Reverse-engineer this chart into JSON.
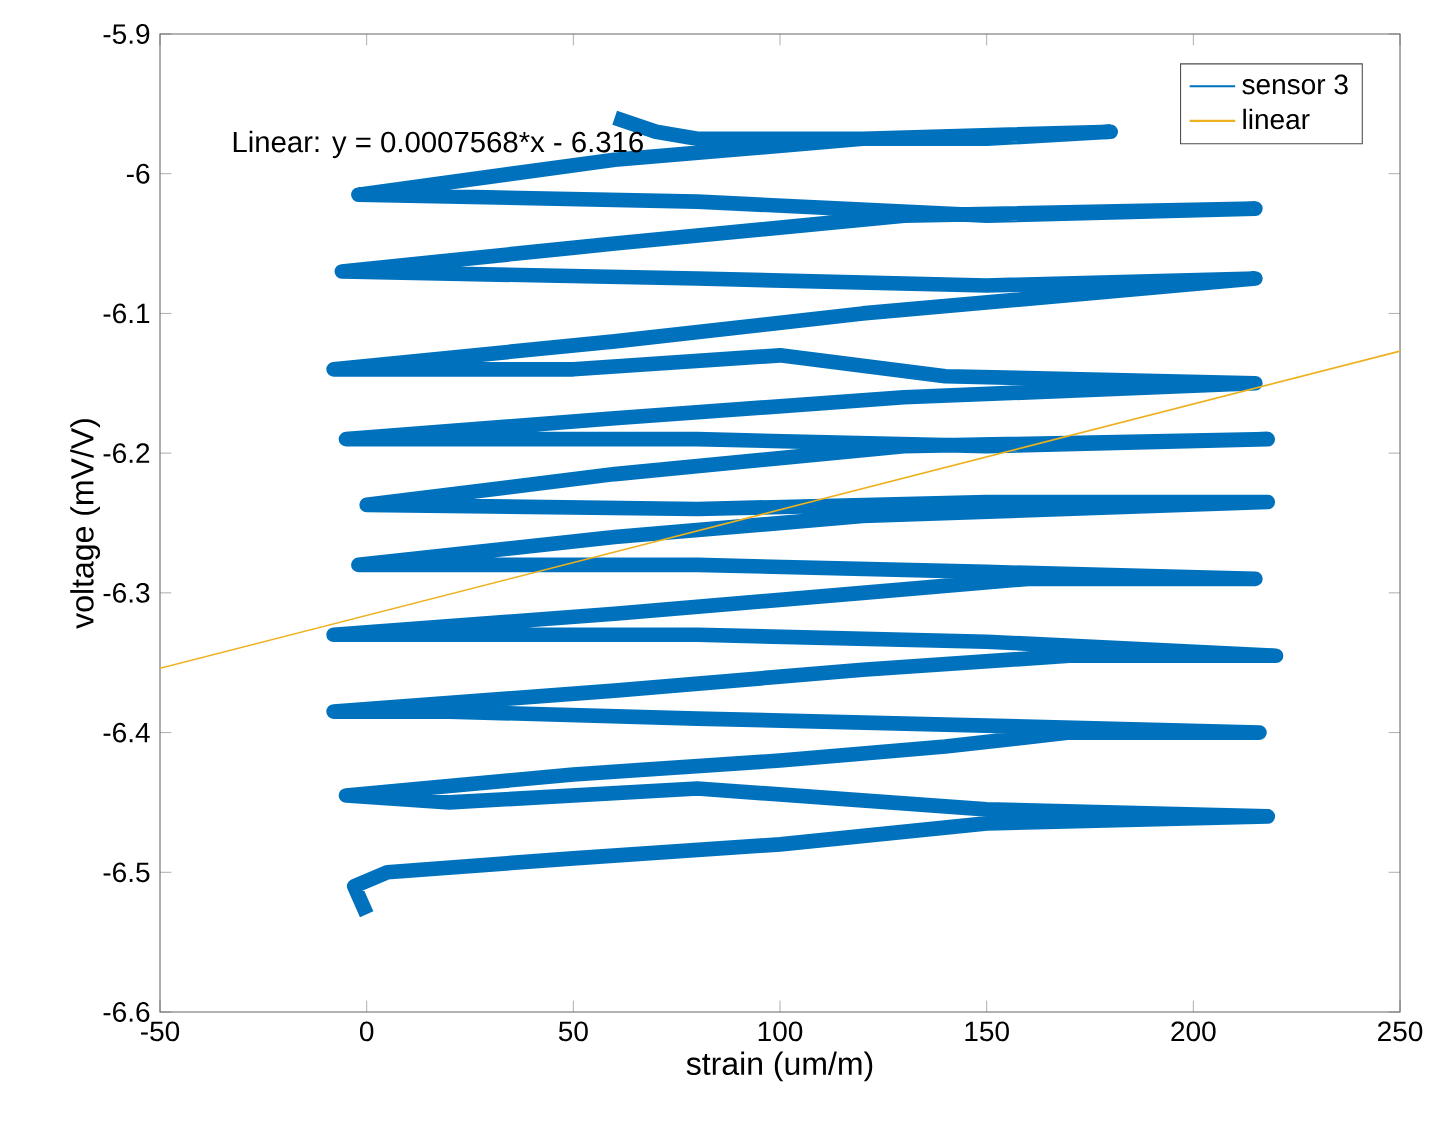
{
  "chart_data": {
    "type": "line",
    "xlabel": "strain (um/m)",
    "ylabel": "voltage (mV/V)",
    "xlim": [
      -50,
      250
    ],
    "ylim": [
      -6.6,
      -5.9
    ],
    "xticks": [
      -50,
      0,
      50,
      100,
      150,
      200,
      250
    ],
    "yticks": [
      -6.6,
      -6.5,
      -6.4,
      -6.3,
      -6.2,
      -6.1,
      -6,
      -5.9
    ],
    "grid": false,
    "legend": "top right",
    "annotations": [
      "Linear:  y = 0.0007568*x - 6.316"
    ],
    "series": [
      {
        "name": "sensor 3",
        "color": "#0072bd",
        "x": [
          0,
          -3,
          5,
          50,
          100,
          150,
          218,
          150,
          80,
          20,
          -5,
          50,
          100,
          140,
          170,
          216,
          150,
          80,
          20,
          -8,
          60,
          120,
          170,
          220,
          150,
          80,
          -8,
          60,
          120,
          160,
          215,
          150,
          80,
          -2,
          60,
          120,
          218,
          150,
          80,
          0,
          60,
          130,
          218,
          150,
          80,
          -5,
          60,
          130,
          215,
          140,
          100,
          50,
          -8,
          60,
          120,
          215,
          150,
          80,
          -6,
          60,
          130,
          215,
          150,
          80,
          -2,
          60,
          120,
          180,
          150,
          80,
          70,
          60
        ],
        "values": [
          -6.53,
          -6.51,
          -6.5,
          -6.49,
          -6.48,
          -6.465,
          -6.46,
          -6.455,
          -6.44,
          -6.45,
          -6.445,
          -6.43,
          -6.42,
          -6.41,
          -6.4,
          -6.4,
          -6.395,
          -6.39,
          -6.385,
          -6.385,
          -6.37,
          -6.355,
          -6.345,
          -6.345,
          -6.335,
          -6.33,
          -6.33,
          -6.315,
          -6.3,
          -6.29,
          -6.29,
          -6.285,
          -6.28,
          -6.28,
          -6.26,
          -6.245,
          -6.235,
          -6.235,
          -6.24,
          -6.237,
          -6.215,
          -6.195,
          -6.19,
          -6.195,
          -6.19,
          -6.19,
          -6.175,
          -6.16,
          -6.15,
          -6.145,
          -6.13,
          -6.14,
          -6.14,
          -6.12,
          -6.1,
          -6.075,
          -6.08,
          -6.075,
          -6.07,
          -6.05,
          -6.03,
          -6.025,
          -6.03,
          -6.02,
          -6.015,
          -5.99,
          -5.975,
          -5.97,
          -5.975,
          -5.975,
          -5.97,
          -5.96
        ]
      },
      {
        "name": "linear",
        "color": "#edb120",
        "x": [
          -50,
          250
        ],
        "values": [
          -6.354,
          -6.127
        ]
      }
    ]
  }
}
